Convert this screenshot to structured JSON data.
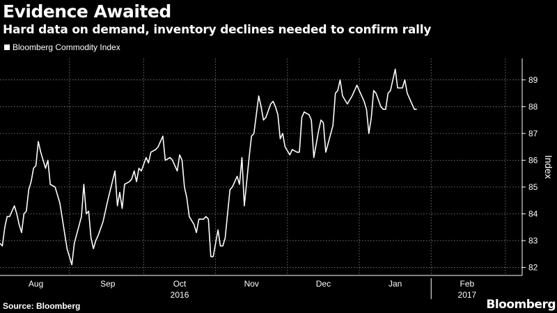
{
  "header": {
    "title": "Evidence Awaited",
    "subtitle": "Hard data on demand, inventory declines needed to confirm rally"
  },
  "footer": {
    "source": "Source: Bloomberg",
    "brand": "Bloomberg"
  },
  "colors": {
    "background": "#000000",
    "line": "#ffffff",
    "grid": "#8c8c8c"
  },
  "chart_data": {
    "type": "line",
    "ylabel": "Index",
    "ylim": [
      81.7,
      89.8
    ],
    "yticks": [
      82,
      83,
      84,
      85,
      86,
      87,
      88,
      89
    ],
    "y_axis_side": "right",
    "grid": "dotted",
    "legend": "top-left",
    "x_range": [
      "2016-07-18",
      "2017-02-21"
    ],
    "month_labels": [
      {
        "label": "Aug",
        "date": "2016-08-02"
      },
      {
        "label": "Sep",
        "date": "2016-09-01"
      },
      {
        "label": "Oct",
        "date": "2016-10-01"
      },
      {
        "label": "Nov",
        "date": "2016-10-31"
      },
      {
        "label": "Dec",
        "date": "2016-11-30"
      },
      {
        "label": "Jan",
        "date": "2016-12-30"
      },
      {
        "label": "Feb",
        "date": "2017-01-29"
      }
    ],
    "gridline_dates": [
      "2016-08-16",
      "2016-09-16",
      "2016-10-16",
      "2016-11-15",
      "2016-12-15",
      "2017-01-14",
      "2017-02-14"
    ],
    "year_labels": [
      {
        "label": "2016",
        "date": "2016-10-01"
      },
      {
        "label": "2017",
        "date": "2017-01-29"
      }
    ],
    "year_divider_date": "2017-01-14",
    "series": [
      {
        "name": "Bloomberg Commodity Index",
        "points": [
          [
            "2016-07-18",
            82.9
          ],
          [
            "2016-07-19",
            82.8
          ],
          [
            "2016-07-20",
            83.5
          ],
          [
            "2016-07-21",
            83.9
          ],
          [
            "2016-07-22",
            83.9
          ],
          [
            "2016-07-24",
            84.3
          ],
          [
            "2016-07-25",
            84.0
          ],
          [
            "2016-07-26",
            83.6
          ],
          [
            "2016-07-27",
            83.3
          ],
          [
            "2016-07-28",
            84.0
          ],
          [
            "2016-07-29",
            84.1
          ],
          [
            "2016-07-30",
            84.9
          ],
          [
            "2016-07-31",
            85.2
          ],
          [
            "2016-08-01",
            85.7
          ],
          [
            "2016-08-02",
            85.8
          ],
          [
            "2016-08-03",
            86.7
          ],
          [
            "2016-08-04",
            86.3
          ],
          [
            "2016-08-06",
            85.7
          ],
          [
            "2016-08-07",
            86.0
          ],
          [
            "2016-08-08",
            85.1
          ],
          [
            "2016-08-10",
            85.0
          ],
          [
            "2016-08-12",
            84.4
          ],
          [
            "2016-08-15",
            82.7
          ],
          [
            "2016-08-17",
            82.1
          ],
          [
            "2016-08-18",
            82.9
          ],
          [
            "2016-08-21",
            83.9
          ],
          [
            "2016-08-22",
            85.1
          ],
          [
            "2016-08-23",
            84.0
          ],
          [
            "2016-08-24",
            84.1
          ],
          [
            "2016-08-25",
            83.1
          ],
          [
            "2016-08-26",
            82.7
          ],
          [
            "2016-08-27",
            83.0
          ],
          [
            "2016-08-28",
            83.2
          ],
          [
            "2016-08-30",
            83.7
          ],
          [
            "2016-09-01",
            84.5
          ],
          [
            "2016-09-04",
            85.6
          ],
          [
            "2016-09-05",
            84.3
          ],
          [
            "2016-09-06",
            84.8
          ],
          [
            "2016-09-07",
            84.2
          ],
          [
            "2016-09-08",
            85.1
          ],
          [
            "2016-09-10",
            85.2
          ],
          [
            "2016-09-11",
            85.3
          ],
          [
            "2016-09-12",
            85.6
          ],
          [
            "2016-09-13",
            85.2
          ],
          [
            "2016-09-14",
            85.7
          ],
          [
            "2016-09-15",
            85.6
          ],
          [
            "2016-09-17",
            86.1
          ],
          [
            "2016-09-18",
            85.9
          ],
          [
            "2016-09-19",
            86.3
          ],
          [
            "2016-09-21",
            86.4
          ],
          [
            "2016-09-22",
            86.5
          ],
          [
            "2016-09-24",
            86.9
          ],
          [
            "2016-09-25",
            86.0
          ],
          [
            "2016-09-27",
            86.1
          ],
          [
            "2016-09-28",
            86.0
          ],
          [
            "2016-09-30",
            85.6
          ],
          [
            "2016-10-01",
            86.2
          ],
          [
            "2016-10-02",
            86.0
          ],
          [
            "2016-10-03",
            85.0
          ],
          [
            "2016-10-04",
            84.6
          ],
          [
            "2016-10-05",
            83.9
          ],
          [
            "2016-10-07",
            83.6
          ],
          [
            "2016-10-08",
            83.3
          ],
          [
            "2016-10-09",
            83.8
          ],
          [
            "2016-10-10",
            83.8
          ],
          [
            "2016-10-11",
            83.8
          ],
          [
            "2016-10-12",
            83.9
          ],
          [
            "2016-10-13",
            83.8
          ],
          [
            "2016-10-14",
            82.4
          ],
          [
            "2016-10-15",
            82.4
          ],
          [
            "2016-10-17",
            83.4
          ],
          [
            "2016-10-18",
            82.8
          ],
          [
            "2016-10-19",
            82.8
          ],
          [
            "2016-10-20",
            83.1
          ],
          [
            "2016-10-22",
            84.9
          ],
          [
            "2016-10-23",
            85.0
          ],
          [
            "2016-10-25",
            85.4
          ],
          [
            "2016-10-26",
            85.1
          ],
          [
            "2016-10-27",
            86.1
          ],
          [
            "2016-10-28",
            84.3
          ],
          [
            "2016-10-30",
            86.1
          ],
          [
            "2016-10-31",
            86.9
          ],
          [
            "2016-11-01",
            87.0
          ],
          [
            "2016-11-03",
            88.4
          ],
          [
            "2016-11-04",
            88.0
          ],
          [
            "2016-11-05",
            87.5
          ],
          [
            "2016-11-06",
            87.6
          ],
          [
            "2016-11-08",
            88.1
          ],
          [
            "2016-11-09",
            88.2
          ],
          [
            "2016-11-10",
            88.0
          ],
          [
            "2016-11-11",
            87.7
          ],
          [
            "2016-11-12",
            86.8
          ],
          [
            "2016-11-13",
            87.0
          ],
          [
            "2016-11-14",
            86.5
          ],
          [
            "2016-11-16",
            86.2
          ],
          [
            "2016-11-17",
            86.4
          ],
          [
            "2016-11-19",
            86.3
          ],
          [
            "2016-11-20",
            86.3
          ],
          [
            "2016-11-21",
            87.6
          ],
          [
            "2016-11-22",
            87.8
          ],
          [
            "2016-11-24",
            87.7
          ],
          [
            "2016-11-25",
            87.5
          ],
          [
            "2016-11-26",
            86.1
          ],
          [
            "2016-11-28",
            87.1
          ],
          [
            "2016-11-29",
            87.5
          ],
          [
            "2016-11-30",
            87.4
          ],
          [
            "2016-12-01",
            86.3
          ],
          [
            "2016-12-04",
            87.3
          ],
          [
            "2016-12-05",
            88.5
          ],
          [
            "2016-12-06",
            88.6
          ],
          [
            "2016-12-07",
            89.0
          ],
          [
            "2016-12-08",
            88.4
          ],
          [
            "2016-12-10",
            88.1
          ],
          [
            "2016-12-12",
            88.4
          ],
          [
            "2016-12-13",
            88.6
          ],
          [
            "2016-12-14",
            88.8
          ],
          [
            "2016-12-16",
            88.4
          ],
          [
            "2016-12-17",
            88.2
          ],
          [
            "2016-12-18",
            87.9
          ],
          [
            "2016-12-19",
            87.0
          ],
          [
            "2016-12-20",
            87.6
          ],
          [
            "2016-12-21",
            88.6
          ],
          [
            "2016-12-22",
            88.5
          ],
          [
            "2016-12-24",
            88.0
          ],
          [
            "2016-12-25",
            87.9
          ],
          [
            "2016-12-26",
            87.9
          ],
          [
            "2016-12-27",
            88.5
          ],
          [
            "2016-12-28",
            88.6
          ],
          [
            "2016-12-30",
            89.4
          ],
          [
            "2016-12-31",
            88.7
          ],
          [
            "2017-01-02",
            88.7
          ],
          [
            "2017-01-03",
            89.0
          ],
          [
            "2017-01-04",
            88.5
          ],
          [
            "2017-01-06",
            88.1
          ],
          [
            "2017-01-07",
            87.9
          ],
          [
            "2017-01-08",
            87.9
          ]
        ]
      }
    ]
  }
}
